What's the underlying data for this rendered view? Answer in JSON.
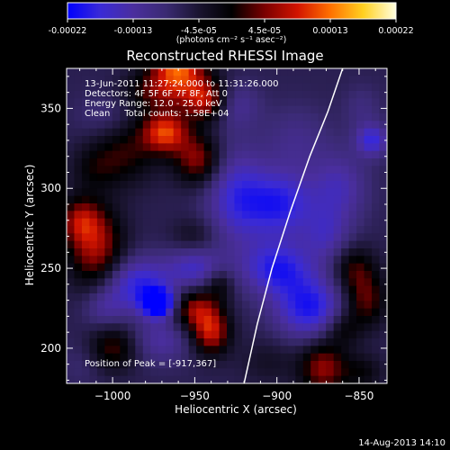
{
  "chart_data": {
    "type": "heatmap",
    "title": "Reconstructed RHESSI Image",
    "xlabel": "Heliocentric X (arcsec)",
    "ylabel": "Heliocentric Y (arcsec)",
    "x_range": [
      -1028,
      -833
    ],
    "y_range": [
      178,
      375
    ],
    "x_ticks": [
      -1000,
      -950,
      -900,
      -850
    ],
    "x_tick_labels": [
      "−1000",
      "−950",
      "−900",
      "−850"
    ],
    "y_ticks": [
      200,
      250,
      300,
      350
    ],
    "y_tick_labels": [
      "200",
      "250",
      "300",
      "350"
    ],
    "colorbar": {
      "range": [
        -0.00022,
        0.00022
      ],
      "tick_labels": [
        "-0.00022",
        "-0.00013",
        "-4.5e-05",
        "4.5e-05",
        "0.00013",
        "0.00022"
      ],
      "unit_label": "(photons cm⁻² s⁻¹ asec⁻²)"
    },
    "annotations": [
      "13-Jun-2011 11:27:24.000 to 11:31:26.000",
      "Detectors: 4F 5F 6F 7F 8F, Att 0",
      "Energy Range: 12.0 - 25.0 keV",
      "Clean     Total counts: 1.58E+04"
    ],
    "peak_label": "Position of Peak = [-917,367]",
    "timestamp": "14-Aug-2013 14:10",
    "colormap_stops": [
      "#0000ff",
      "#3a2ad6",
      "#4a2e9e",
      "#3a2a72",
      "#1a1430",
      "#000000",
      "#7a0000",
      "#d21400",
      "#ff7000",
      "#ffd020",
      "#ffffe0"
    ],
    "sources": [
      [
        -960,
        375,
        0.85,
        12,
        14
      ],
      [
        -943,
        355,
        0.6,
        9,
        9
      ],
      [
        -968,
        335,
        0.75,
        10,
        9
      ],
      [
        -993,
        322,
        0.35,
        14,
        14
      ],
      [
        -948,
        318,
        0.55,
        10,
        11
      ],
      [
        -978,
        360,
        0.3,
        12,
        9
      ],
      [
        -1005,
        345,
        -0.15,
        12,
        10
      ],
      [
        -925,
        352,
        -0.25,
        10,
        10
      ],
      [
        -1012,
        312,
        0.2,
        10,
        10
      ],
      [
        -925,
        295,
        -0.45,
        13,
        22
      ],
      [
        -898,
        290,
        -0.55,
        15,
        15
      ],
      [
        -862,
        300,
        -0.35,
        12,
        16
      ],
      [
        -842,
        330,
        -0.5,
        7,
        7
      ],
      [
        -888,
        330,
        -0.2,
        14,
        15
      ],
      [
        -848,
        350,
        -0.15,
        8,
        10
      ],
      [
        -870,
        270,
        -0.3,
        10,
        12
      ],
      [
        -853,
        250,
        0.35,
        9,
        10
      ],
      [
        -846,
        230,
        0.45,
        9,
        12
      ],
      [
        -900,
        250,
        -0.55,
        15,
        12
      ],
      [
        -880,
        225,
        -0.6,
        15,
        14
      ],
      [
        -860,
        212,
        0.3,
        8,
        8
      ],
      [
        -872,
        188,
        0.55,
        10,
        12
      ],
      [
        -848,
        185,
        0.25,
        9,
        8
      ],
      [
        -905,
        192,
        0.15,
        12,
        10
      ],
      [
        -1010,
        262,
        0.6,
        12,
        18
      ],
      [
        -1020,
        280,
        0.45,
        9,
        10
      ],
      [
        -985,
        240,
        -0.55,
        15,
        12
      ],
      [
        -972,
        228,
        -0.9,
        7,
        6
      ],
      [
        -950,
        250,
        -0.4,
        12,
        10
      ],
      [
        -950,
        225,
        0.55,
        10,
        9
      ],
      [
        -940,
        210,
        0.65,
        8,
        10
      ],
      [
        -970,
        205,
        -0.3,
        12,
        10
      ],
      [
        -1000,
        200,
        0.4,
        10,
        10
      ],
      [
        -1018,
        190,
        -0.1,
        10,
        10
      ],
      [
        -1005,
        225,
        -0.25,
        9,
        9
      ],
      [
        -935,
        240,
        0.3,
        6,
        7
      ],
      [
        -950,
        270,
        0.2,
        10,
        8
      ]
    ],
    "limb_arc": [
      [
        -920,
        178
      ],
      [
        -912,
        215
      ],
      [
        -903,
        250
      ],
      [
        -892,
        285
      ],
      [
        -880,
        320
      ],
      [
        -869,
        348
      ],
      [
        -860,
        375
      ]
    ]
  }
}
